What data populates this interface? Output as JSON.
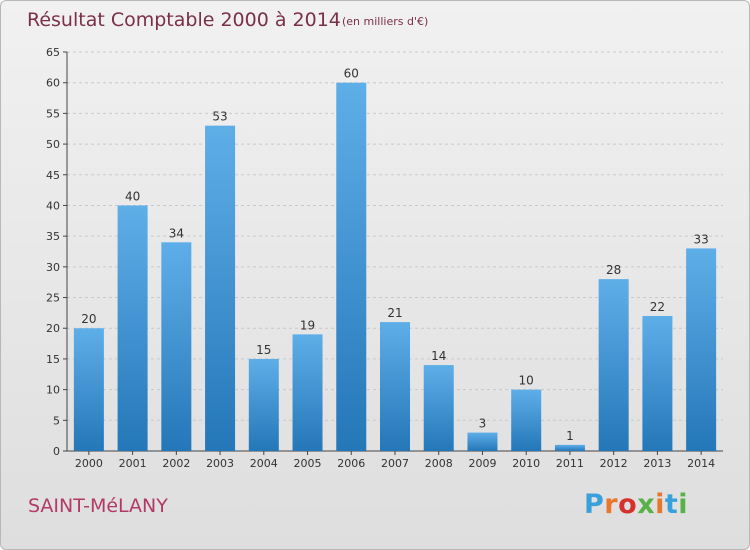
{
  "header": {
    "title": "Résultat Comptable 2000 à 2014",
    "subtitle": "(en milliers d'€)"
  },
  "footer": {
    "commune": "SAINT-MéLANY",
    "logo_text": "Proxiti",
    "logo_colors": [
      "#3aa0dc",
      "#e8762c",
      "#d6312c",
      "#58b247",
      "#e8762c",
      "#3aa0dc",
      "#58b247"
    ]
  },
  "colors": {
    "bar_top": "#5eaee8",
    "bar_bottom": "#2477b8",
    "title": "#7a2f4a",
    "commune": "#b23a66",
    "grid": "#c9c9c9",
    "axis": "#444444"
  },
  "chart_data": {
    "type": "bar",
    "title": "Résultat Comptable 2000 à 2014",
    "subtitle": "(en milliers d'€)",
    "xlabel": "",
    "ylabel": "",
    "categories": [
      "2000",
      "2001",
      "2002",
      "2003",
      "2004",
      "2005",
      "2006",
      "2007",
      "2008",
      "2009",
      "2010",
      "2011",
      "2012",
      "2013",
      "2014"
    ],
    "values": [
      20,
      40,
      34,
      53,
      15,
      19,
      60,
      21,
      14,
      3,
      10,
      1,
      28,
      22,
      33
    ],
    "ylim": [
      0,
      65
    ],
    "yticks": [
      0,
      5,
      10,
      15,
      20,
      25,
      30,
      35,
      40,
      45,
      50,
      55,
      60,
      65
    ],
    "grid": true,
    "data_labels": true
  }
}
